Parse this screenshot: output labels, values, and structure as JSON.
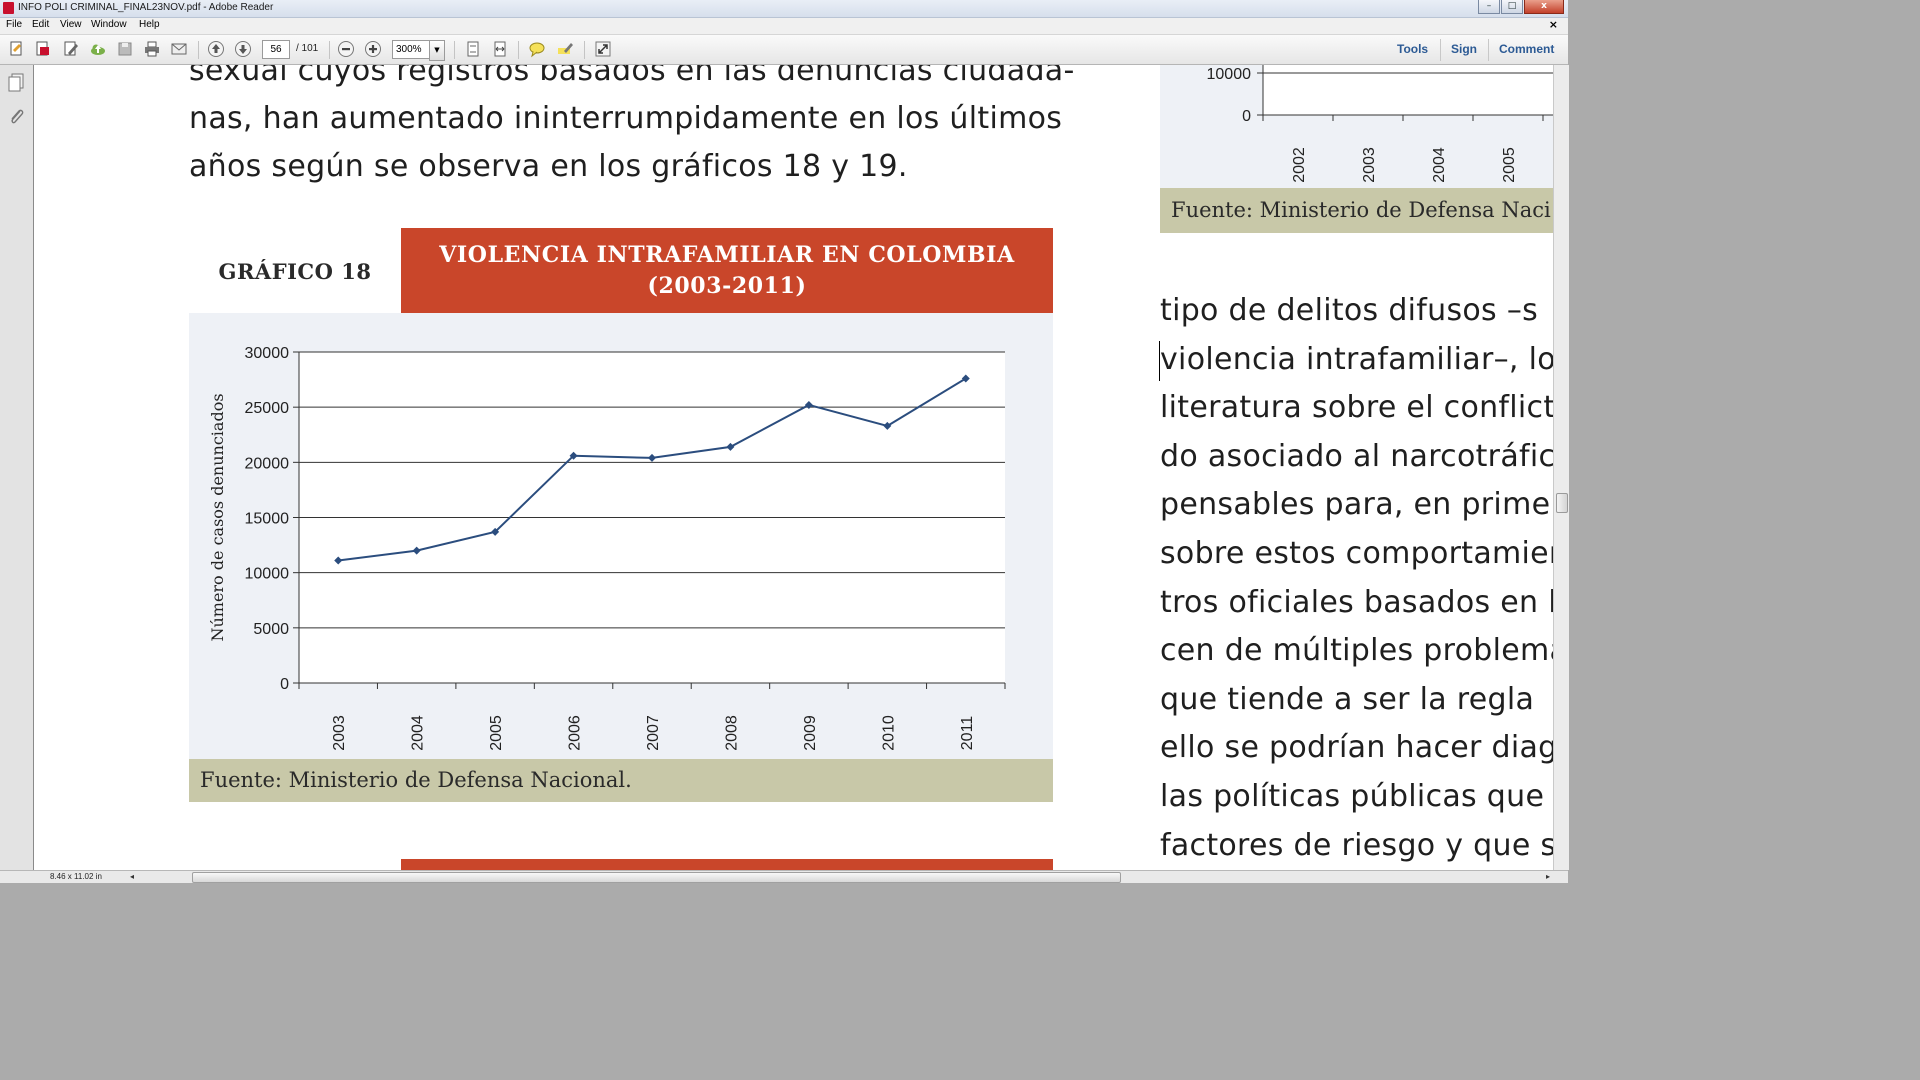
{
  "window": {
    "title": "INFO POLI CRIMINAL_FINAL23NOV.pdf - Adobe Reader",
    "minimize": "–",
    "maximize": "□",
    "close": "x"
  },
  "menu": {
    "items": [
      "File",
      "Edit",
      "View",
      "Window",
      "Help"
    ],
    "doc_close": "×"
  },
  "toolbar": {
    "page_current": "56",
    "page_total": "/ 101",
    "zoom": "300%",
    "right_links": [
      "Tools",
      "Sign",
      "Comment"
    ],
    "icons": [
      "open-icon",
      "create-pdf-icon",
      "edit-icon",
      "cloud-upload-icon",
      "save-icon",
      "print-icon",
      "email-icon",
      "previous-page-icon",
      "next-page-icon",
      "zoom-out-icon",
      "zoom-in-icon",
      "fit-page-icon",
      "fit-width-icon",
      "comment-icon",
      "highlight-icon",
      "fullscreen-icon"
    ]
  },
  "document": {
    "left_col_lines": [
      "sexual cuyos registros basados en las denuncias ciudada-",
      "nas, han aumentado ininterrumpidamente en los últimos",
      "años según se observa en los gráficos 18 y 19."
    ],
    "graph_label": "GRÁFICO 18",
    "graph_title_line1": "VIOLENCIA INTRAFAMILIAR EN COLOMBIA",
    "graph_title_line2": "(2003-2011)",
    "graph_source": "Fuente: Ministerio de Defensa Nacional.",
    "right_col_source": "Fuente: Ministerio de Defensa Naci",
    "right_col_lines": [
      "tipo de delitos difusos –s",
      "violencia intrafamiliar–, lo",
      "literatura sobre el conflict",
      "do asociado al narcotráfico",
      "pensables para, en primer",
      "sobre estos comportamien",
      "tros oficiales basados en la",
      "cen de múltiples problema",
      "que tiende a ser la regla",
      "ello se podrían hacer diag",
      "las políticas públicas que",
      "factores de riesgo y que si"
    ]
  },
  "chart_data": [
    {
      "type": "line",
      "title": "VIOLENCIA INTRAFAMILIAR EN COLOMBIA (2003-2011)",
      "ylabel": "Número de casos denunciados",
      "xlabel": "",
      "x": [
        "2003",
        "2004",
        "2005",
        "2006",
        "2007",
        "2008",
        "2009",
        "2010",
        "2011"
      ],
      "series": [
        {
          "values": [
            11100,
            12000,
            13700,
            20600,
            20400,
            21400,
            25200,
            23300,
            27600
          ]
        }
      ],
      "ylim": [
        0,
        30000
      ],
      "yticks": [
        "0",
        "5000",
        "10000",
        "15000",
        "20000",
        "25000",
        "30000"
      ],
      "grid": true,
      "color": "#2b4d7e"
    },
    {
      "type": "line",
      "partial": true,
      "x": [
        "2002",
        "2003",
        "2004",
        "2005"
      ],
      "yticks_visible": [
        "0",
        "10000"
      ]
    }
  ],
  "status": {
    "page_size": "8.46 x 11.02 in"
  }
}
